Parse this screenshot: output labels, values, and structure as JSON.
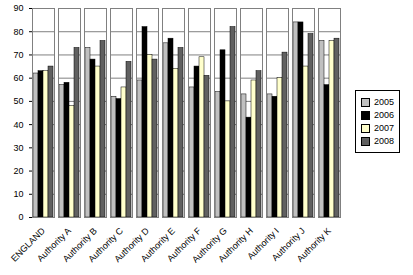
{
  "chart_data": {
    "type": "bar",
    "categories": [
      "ENGLAND",
      "Authority A",
      "Authority B",
      "Authority C",
      "Authority D",
      "Authority E",
      "Authority F",
      "Authority G",
      "Authority H",
      "Authority I",
      "Authority J",
      "Authority K"
    ],
    "series": [
      {
        "name": "2005",
        "color": "#c0c0c0",
        "values": [
          62,
          57,
          73,
          52,
          59,
          75,
          56,
          54,
          53,
          53,
          84,
          76
        ]
      },
      {
        "name": "2006",
        "color": "#000000",
        "values": [
          63,
          58,
          68,
          51,
          82,
          77,
          65,
          72,
          43,
          52,
          84,
          57
        ]
      },
      {
        "name": "2007",
        "color": "#ffffcc",
        "values": [
          63,
          48,
          65,
          56,
          70,
          64,
          69,
          50,
          59,
          60,
          65,
          76
        ]
      },
      {
        "name": "2008",
        "color": "#606060",
        "values": [
          65,
          73,
          76,
          67,
          68,
          73,
          61,
          82,
          63,
          71,
          79,
          77
        ]
      }
    ],
    "ylim": [
      0,
      90
    ],
    "yticks": [
      0,
      10,
      20,
      30,
      40,
      50,
      60,
      70,
      80,
      90
    ],
    "grid": true,
    "legend": "right"
  }
}
